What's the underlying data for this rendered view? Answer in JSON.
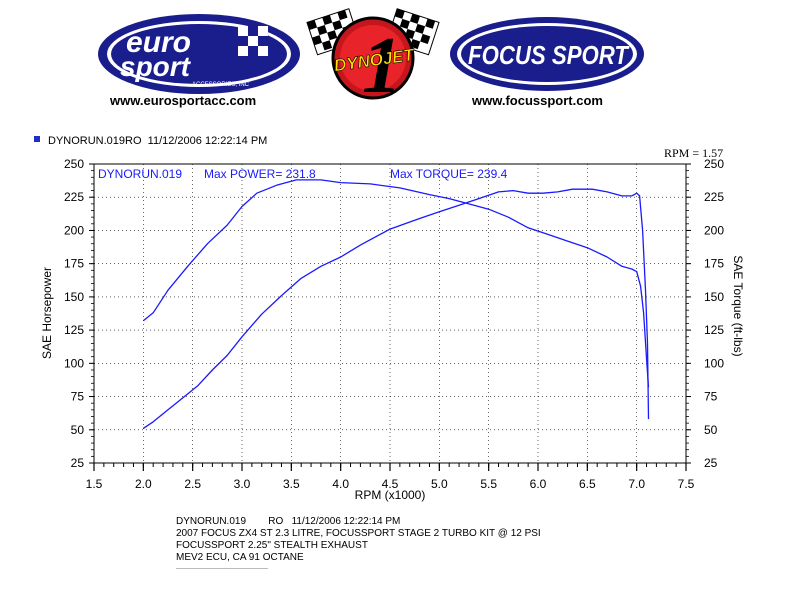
{
  "logos": {
    "left": {
      "line1": "euro",
      "line2": "sport",
      "sub": "ACCESSORIES, INC",
      "url": "www.eurosportacc.com"
    },
    "center": {
      "big": "1",
      "text": "DYNOJET"
    },
    "right": {
      "text": "FOCUS SPORT",
      "url": "www.focussport.com"
    }
  },
  "header": {
    "run": "DYNORUN.019RO",
    "datetime": "11/12/2006 12:22:14 PM"
  },
  "rpm_corner": "RPM = 1.57",
  "chart_data": {
    "type": "line",
    "xlabel": "RPM (x1000)",
    "ylabel_left": "SAE Horsepower",
    "ylabel_right": "SAE Torque (ft-lbs)",
    "xlim": [
      1.5,
      7.5
    ],
    "ylim": [
      25,
      250
    ],
    "x_ticks": [
      "1.5",
      "2.0",
      "2.5",
      "3.0",
      "3.5",
      "4.0",
      "4.5",
      "5.0",
      "5.5",
      "6.0",
      "6.5",
      "7.0",
      "7.5"
    ],
    "y_ticks": [
      "25",
      "50",
      "75",
      "100",
      "125",
      "150",
      "175",
      "200",
      "225",
      "250"
    ],
    "annotations": {
      "run": "DYNORUN.019",
      "max_power": "Max POWER= 231.8",
      "max_torque": "Max TORQUE= 239.4"
    },
    "line_color": "#1a1aff",
    "series": [
      {
        "values": [
          [
            2.0,
            51
          ],
          [
            2.1,
            56
          ],
          [
            2.25,
            65
          ],
          [
            2.4,
            74
          ],
          [
            2.55,
            83
          ],
          [
            2.7,
            95
          ],
          [
            2.85,
            106
          ],
          [
            3.0,
            120
          ],
          [
            3.2,
            137
          ],
          [
            3.4,
            151
          ],
          [
            3.6,
            164
          ],
          [
            3.8,
            173
          ],
          [
            4.0,
            180
          ],
          [
            4.2,
            189
          ],
          [
            4.5,
            201
          ],
          [
            4.8,
            209
          ],
          [
            5.0,
            214
          ],
          [
            5.2,
            219
          ],
          [
            5.4,
            224
          ],
          [
            5.6,
            229
          ],
          [
            5.75,
            230
          ],
          [
            5.9,
            228
          ],
          [
            6.05,
            228
          ],
          [
            6.2,
            229
          ],
          [
            6.35,
            231
          ],
          [
            6.55,
            231
          ],
          [
            6.7,
            229
          ],
          [
            6.85,
            226
          ],
          [
            6.95,
            226
          ],
          [
            7.0,
            228
          ],
          [
            7.03,
            226
          ],
          [
            7.06,
            200
          ],
          [
            7.09,
            155
          ],
          [
            7.11,
            115
          ],
          [
            7.12,
            58
          ]
        ]
      },
      {
        "values": [
          [
            2.0,
            132
          ],
          [
            2.1,
            138
          ],
          [
            2.25,
            155
          ],
          [
            2.45,
            173
          ],
          [
            2.65,
            190
          ],
          [
            2.85,
            204
          ],
          [
            3.0,
            218
          ],
          [
            3.15,
            228
          ],
          [
            3.35,
            234
          ],
          [
            3.55,
            238
          ],
          [
            3.8,
            238
          ],
          [
            4.0,
            236
          ],
          [
            4.3,
            235
          ],
          [
            4.6,
            232
          ],
          [
            4.9,
            227
          ],
          [
            5.1,
            224
          ],
          [
            5.3,
            220
          ],
          [
            5.5,
            216
          ],
          [
            5.7,
            210
          ],
          [
            5.9,
            202
          ],
          [
            6.1,
            197
          ],
          [
            6.3,
            192
          ],
          [
            6.5,
            187
          ],
          [
            6.7,
            180
          ],
          [
            6.85,
            173
          ],
          [
            6.95,
            171
          ],
          [
            7.0,
            169
          ],
          [
            7.04,
            158
          ],
          [
            7.07,
            138
          ],
          [
            7.1,
            104
          ],
          [
            7.12,
            82
          ]
        ]
      }
    ]
  },
  "footer": {
    "line1": "DYNORUN.019        RO   11/12/2006 12:22:14 PM",
    "line2": "2007 FOCUS ZX4 ST 2.3 LITRE, FOCUSSPORT STAGE 2 TURBO KIT @ 12 PSI",
    "line3": "FOCUSSPORT 2.25\" STEALTH EXHAUST",
    "line4": "MEV2 ECU, CA 91 OCTANE"
  }
}
